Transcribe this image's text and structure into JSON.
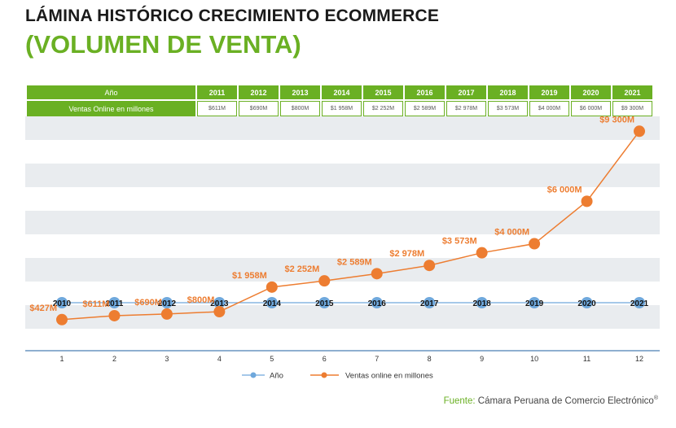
{
  "title": {
    "line1": "LÁMINA HISTÓRICO CRECIMIENTO ECOMMERCE",
    "line2": "(VOLUMEN DE VENTA)"
  },
  "table": {
    "row1_label": "Año",
    "row2_label": "Ventas Online en millones",
    "years": [
      "2011",
      "2012",
      "2013",
      "2014",
      "2015",
      "2016",
      "2017",
      "2018",
      "2019",
      "2020",
      "2021"
    ],
    "values": [
      "$611M",
      "$690M",
      "$800M",
      "$1 958M",
      "$2 252M",
      "$2 589M",
      "$2 978M",
      "$3 573M",
      "$4 000M",
      "$6 000M",
      "$9 300M"
    ]
  },
  "chart_data": {
    "type": "line",
    "x": [
      1,
      2,
      3,
      4,
      5,
      6,
      7,
      8,
      9,
      10,
      11,
      12
    ],
    "x_tick_labels": [
      "1",
      "2",
      "3",
      "4",
      "5",
      "6",
      "7",
      "8",
      "9",
      "10",
      "11",
      "12"
    ],
    "series": [
      {
        "name": "Año",
        "color": "#6fa8dc",
        "values": [
          2010,
          2011,
          2012,
          2013,
          2014,
          2015,
          2016,
          2017,
          2018,
          2019,
          2020,
          2021
        ],
        "labels": [
          "2010",
          "2011",
          "2012",
          "2013",
          "2014",
          "2015",
          "2016",
          "2017",
          "2018",
          "2019",
          "2020",
          "2021"
        ]
      },
      {
        "name": "Ventas online en millones",
        "color": "#ed7d31",
        "values": [
          427,
          611,
          690,
          800,
          1958,
          2252,
          2589,
          2978,
          3573,
          4000,
          6000,
          9300
        ],
        "labels": [
          "$427M",
          "$611M",
          "$690M",
          "$800M",
          "$1 958M",
          "$2 252M",
          "$2 589M",
          "$2 978M",
          "$3 573M",
          "$4 000M",
          "$6 000M",
          "$9 300M"
        ]
      }
    ],
    "ylim": [
      -1000,
      10000
    ],
    "banded_background": true,
    "legend_position": "bottom"
  },
  "source": {
    "label": "Fuente:",
    "text": "Cámara Peruana de Comercio Electrónico",
    "mark": "®"
  },
  "colors": {
    "green": "#6ab023",
    "orange": "#ed7d31",
    "blue": "#6fa8dc",
    "band": "#e9ecef",
    "axis": "#4a7fb5"
  }
}
